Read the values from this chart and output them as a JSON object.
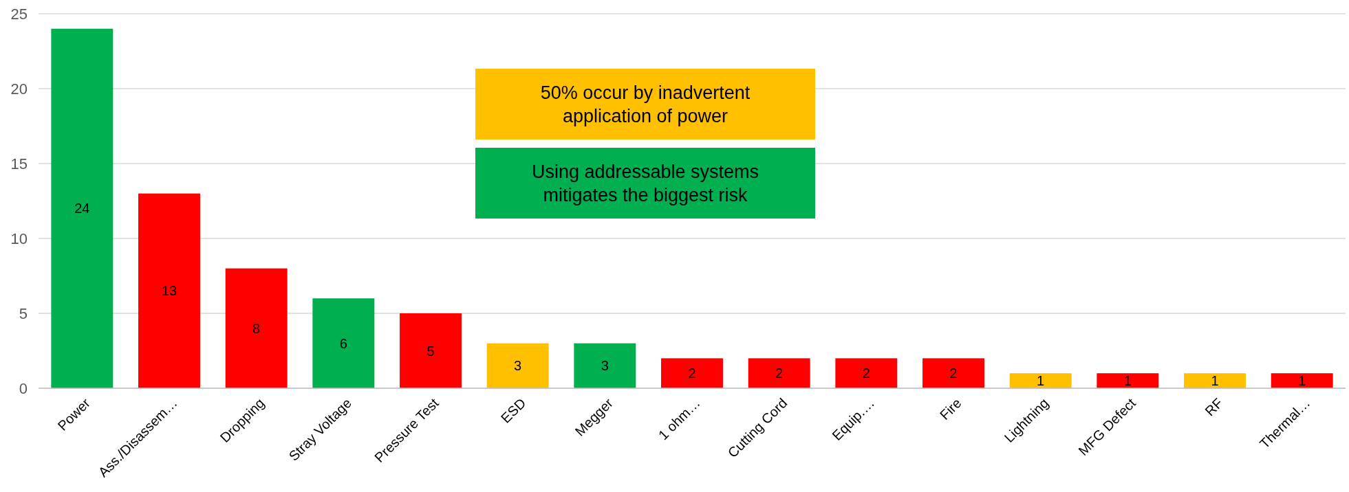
{
  "chart_data": {
    "type": "bar",
    "categories": [
      "Power",
      "Ass./Disassem…",
      "Dropping",
      "Stray Voltage",
      "Pressure Test",
      "ESD",
      "Megger",
      "1 ohm…",
      "Cutting Cord",
      "Equip.…",
      "Fire",
      "Lightning",
      "MFG Defect",
      "RF",
      "Thermal…"
    ],
    "values": [
      24,
      13,
      8,
      6,
      5,
      3,
      3,
      2,
      2,
      2,
      2,
      1,
      1,
      1,
      1
    ],
    "colors": [
      "#00b050",
      "#ff0000",
      "#ff0000",
      "#00b050",
      "#ff0000",
      "#ffc000",
      "#00b050",
      "#ff0000",
      "#ff0000",
      "#ff0000",
      "#ff0000",
      "#ffc000",
      "#ff0000",
      "#ffc000",
      "#ff0000"
    ],
    "ylim": [
      0,
      25
    ],
    "yticks": [
      0,
      5,
      10,
      15,
      20,
      25
    ],
    "grid": "y",
    "data_labels": true,
    "annotations": [
      "50% occur by inadvertent application of power",
      "Using addressable systems mitigates the biggest risk"
    ]
  }
}
